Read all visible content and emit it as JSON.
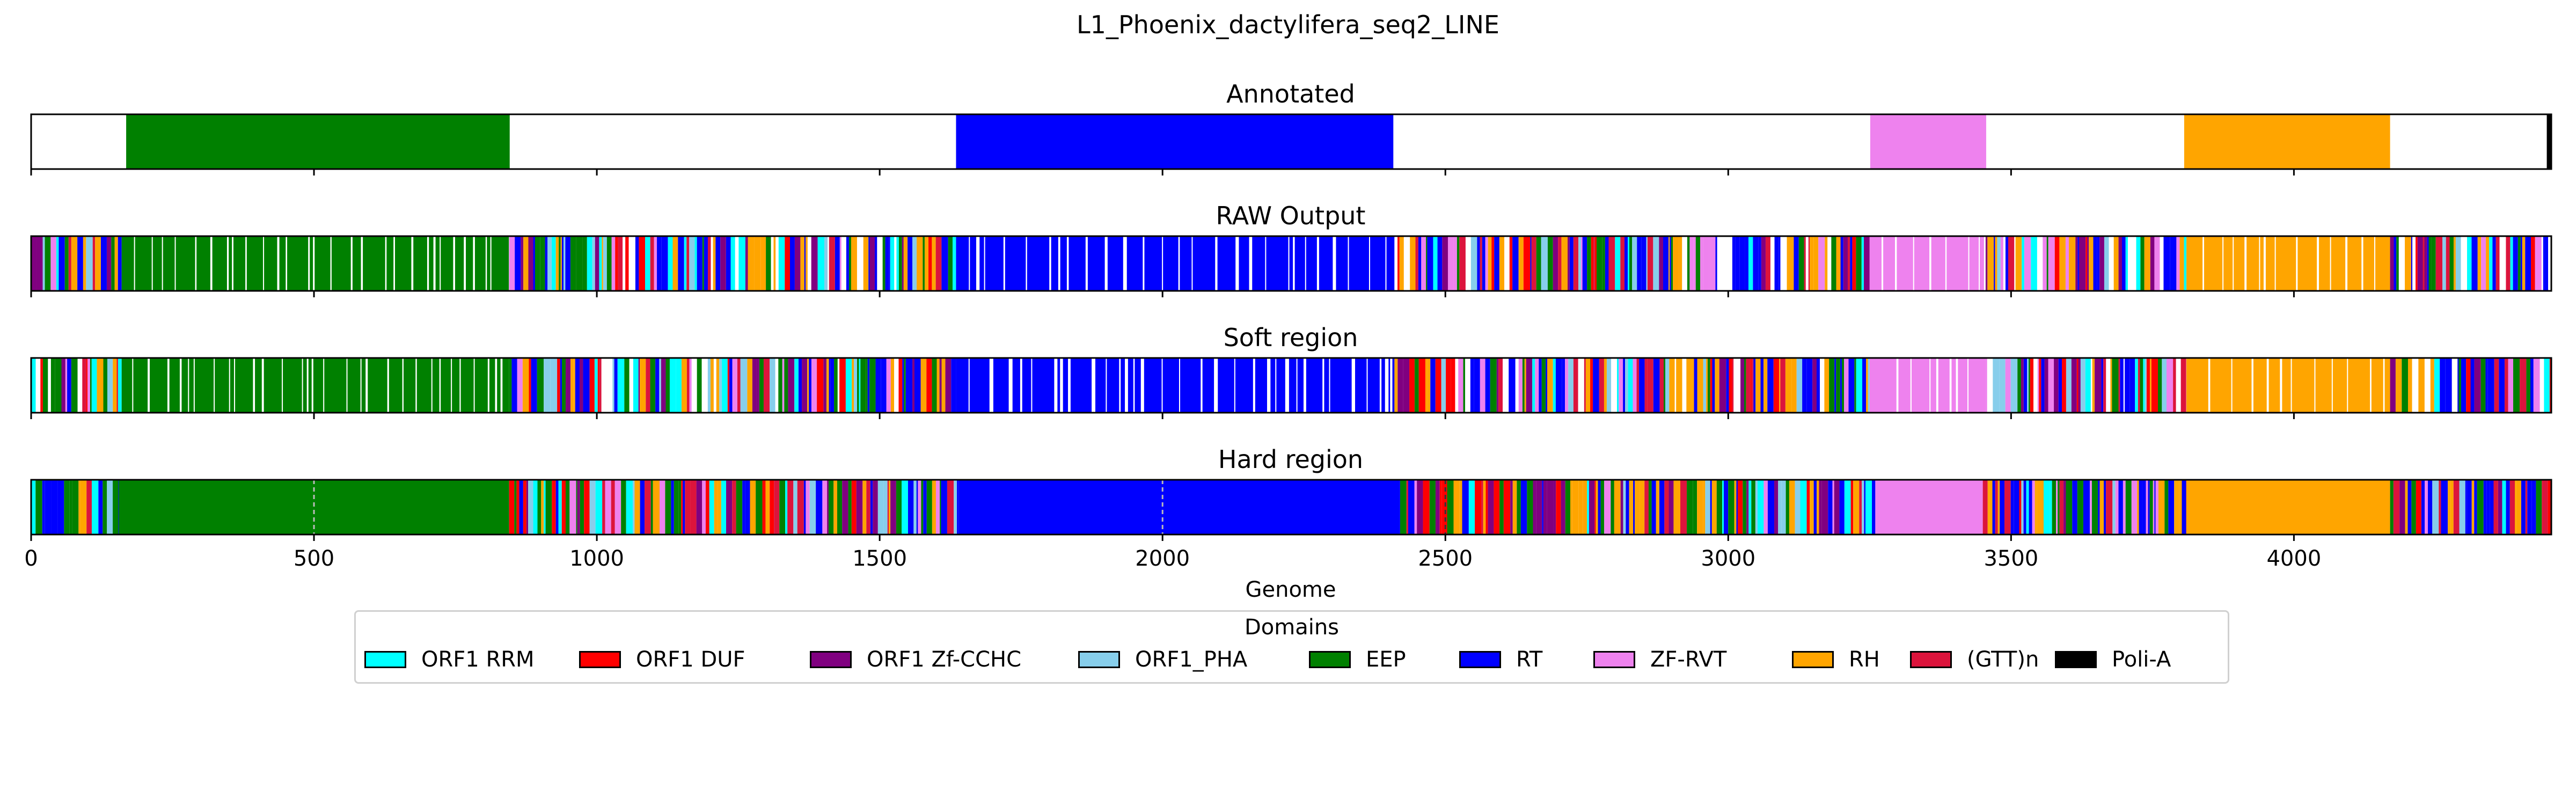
{
  "page_title": "L1_Phoenix_dactylifera_seq2_LINE",
  "chart_data": {
    "type": "heatmap",
    "title": "L1_Phoenix_dactylifera_seq2_LINE",
    "xlabel": "Genome",
    "xlim": [
      0,
      4455
    ],
    "xticks": [
      0,
      500,
      1000,
      1500,
      2000,
      2500,
      3000,
      3500,
      4000
    ],
    "legend": {
      "title": "Domains",
      "placement": "bottom-center",
      "entries": [
        {
          "name": "ORF1 RRM",
          "color": "#00ffff"
        },
        {
          "name": "ORF1 DUF",
          "color": "#ff0000"
        },
        {
          "name": "ORF1 Zf-CCHC",
          "color": "#800080"
        },
        {
          "name": "ORF1_PHA",
          "color": "#87ceeb"
        },
        {
          "name": "EEP",
          "color": "#008000"
        },
        {
          "name": "RT",
          "color": "#0000ff"
        },
        {
          "name": "ZF-RVT",
          "color": "#ee82ee"
        },
        {
          "name": "RH",
          "color": "#ffa500"
        },
        {
          "name": "(GTT)n",
          "color": "#dc143c"
        },
        {
          "name": "Poli-A",
          "color": "#000000"
        }
      ]
    },
    "panels": [
      {
        "title": "Annotated",
        "segments": [
          {
            "domain": "EEP",
            "start": 168,
            "end": 846
          },
          {
            "domain": "RT",
            "start": 1635,
            "end": 2408
          },
          {
            "domain": "ZF-RVT",
            "start": 3251,
            "end": 3456
          },
          {
            "domain": "RH",
            "start": 3806,
            "end": 4170
          },
          {
            "domain": "Poli-A",
            "start": 4447,
            "end": 4455
          }
        ]
      },
      {
        "title": "RAW Output",
        "segments": [
          {
            "domain": "mixed",
            "start": 0,
            "end": 160
          },
          {
            "domain": "EEP",
            "start": 160,
            "end": 845
          },
          {
            "domain": "mixed",
            "start": 845,
            "end": 1635
          },
          {
            "domain": "RT",
            "start": 1635,
            "end": 2410
          },
          {
            "domain": "mixed",
            "start": 2410,
            "end": 3250
          },
          {
            "domain": "ZF-RVT",
            "start": 3250,
            "end": 3455
          },
          {
            "domain": "mixed",
            "start": 3455,
            "end": 3810
          },
          {
            "domain": "RH",
            "start": 3810,
            "end": 4170
          },
          {
            "domain": "mixed",
            "start": 4170,
            "end": 4455
          }
        ]
      },
      {
        "title": "Soft region",
        "segments": [
          {
            "domain": "mixed",
            "start": 0,
            "end": 160
          },
          {
            "domain": "EEP",
            "start": 160,
            "end": 845
          },
          {
            "domain": "mixed",
            "start": 845,
            "end": 1635
          },
          {
            "domain": "RT",
            "start": 1635,
            "end": 2410
          },
          {
            "domain": "mixed",
            "start": 2410,
            "end": 3250
          },
          {
            "domain": "ZF-RVT",
            "start": 3250,
            "end": 3455
          },
          {
            "domain": "mixed",
            "start": 3455,
            "end": 3810
          },
          {
            "domain": "RH",
            "start": 3810,
            "end": 4170
          },
          {
            "domain": "mixed",
            "start": 4170,
            "end": 4455
          }
        ]
      },
      {
        "title": "Hard region",
        "segments": [
          {
            "domain": "mixed",
            "start": 0,
            "end": 155
          },
          {
            "domain": "EEP",
            "start": 155,
            "end": 845
          },
          {
            "domain": "mixed",
            "start": 845,
            "end": 1640
          },
          {
            "domain": "RT",
            "start": 1640,
            "end": 2420
          },
          {
            "domain": "mixed",
            "start": 2420,
            "end": 3260
          },
          {
            "domain": "ZF-RVT",
            "start": 3260,
            "end": 3450
          },
          {
            "domain": "mixed",
            "start": 3450,
            "end": 3810
          },
          {
            "domain": "RH",
            "start": 3810,
            "end": 4170
          },
          {
            "domain": "mixed",
            "start": 4170,
            "end": 4455
          }
        ],
        "dashed_lines": [
          500,
          2000,
          2500
        ]
      }
    ]
  }
}
